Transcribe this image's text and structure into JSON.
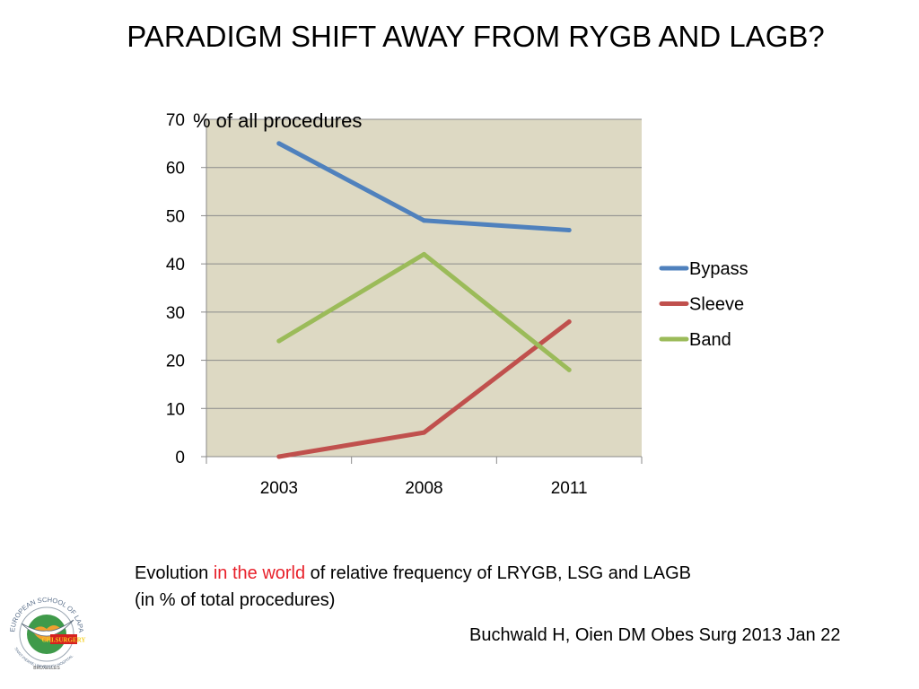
{
  "slide": {
    "title": "PARADIGM SHIFT AWAY FROM RYGB AND LAGB?"
  },
  "caption": {
    "prefix": "Evolution ",
    "highlight": "in the world",
    "suffix": "  of relative frequency of LRYGB, LSG and LAGB",
    "line2": "(in % of total procedures)",
    "highlight_color": "#e8202a"
  },
  "citation": "Buchwald H, Oien DM  Obes Surg 2013 Jan 22",
  "logo": {
    "text_top": "EUROPEAN SCHOOL OF LAPAROSCOPIC SURGERY",
    "text_mid": "CHI.SURGERY",
    "text_bottom": "BRUXELLES",
    "text_bottom2": "SAINT-PIERRE UNIVERSITY HOSPITAL"
  },
  "chart_data": {
    "type": "line",
    "title": "",
    "xlabel": "",
    "ylabel": "% of all procedures",
    "categories": [
      "2003",
      "2008",
      "2011"
    ],
    "ylim": [
      0,
      70
    ],
    "yticks": [
      0,
      10,
      20,
      30,
      40,
      50,
      60,
      70
    ],
    "grid": true,
    "legend_position": "right",
    "plot_background": "#ddd9c3",
    "series": [
      {
        "name": "Bypass",
        "values": [
          65,
          49,
          47
        ],
        "color": "#4f81bd"
      },
      {
        "name": "Sleeve",
        "values": [
          0,
          5,
          28
        ],
        "color": "#c0504d"
      },
      {
        "name": "Band",
        "values": [
          24,
          42,
          18
        ],
        "color": "#9bbb59"
      }
    ]
  }
}
